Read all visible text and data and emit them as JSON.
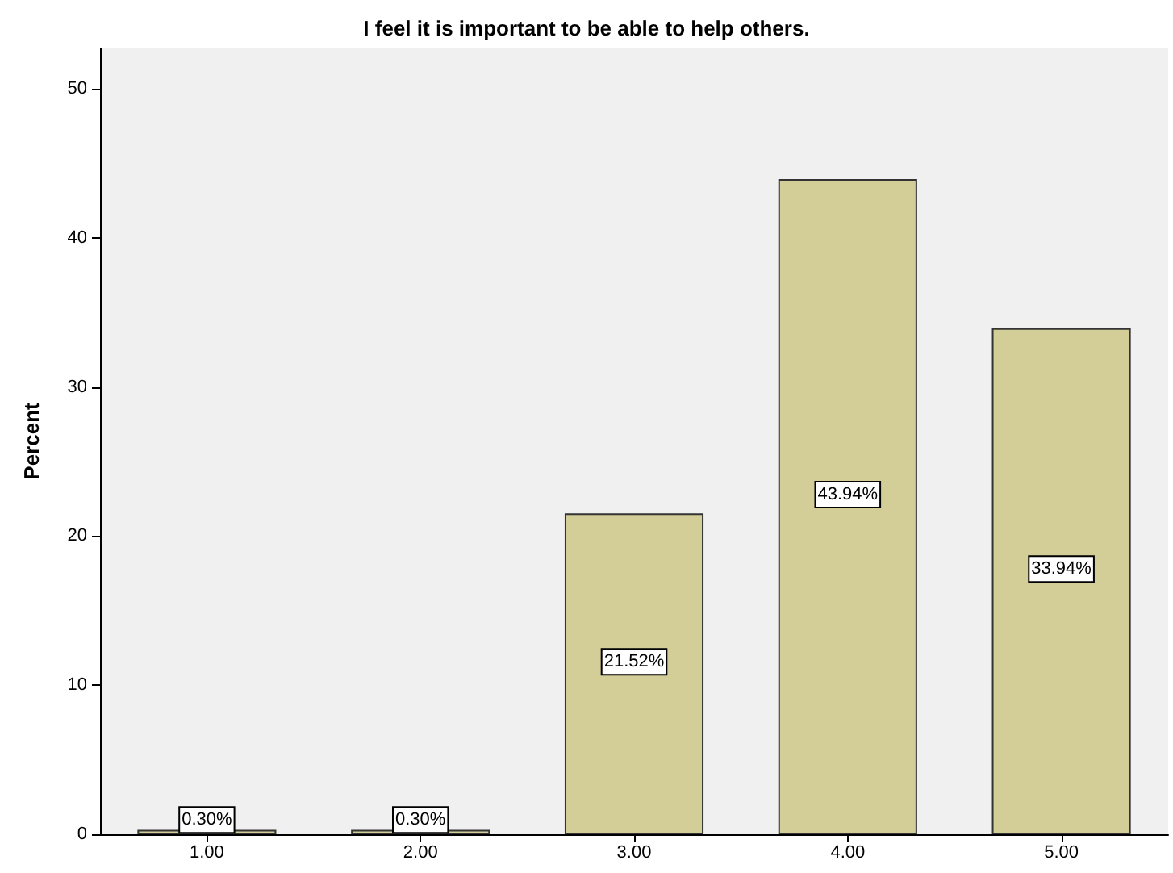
{
  "chart_data": {
    "type": "bar",
    "title": "I feel it is important to be able to help others.",
    "ylabel": "Percent",
    "categories": [
      "1.00",
      "2.00",
      "3.00",
      "4.00",
      "5.00"
    ],
    "values": [
      0.3,
      0.3,
      21.52,
      43.94,
      33.94
    ],
    "value_labels": [
      "0.30%",
      "0.30%",
      "21.52%",
      "43.94%",
      "33.94%"
    ],
    "color": "#d3ce98",
    "ylim": [
      0,
      52.7
    ],
    "yticks": [
      0,
      10,
      20,
      30,
      40,
      50
    ]
  }
}
